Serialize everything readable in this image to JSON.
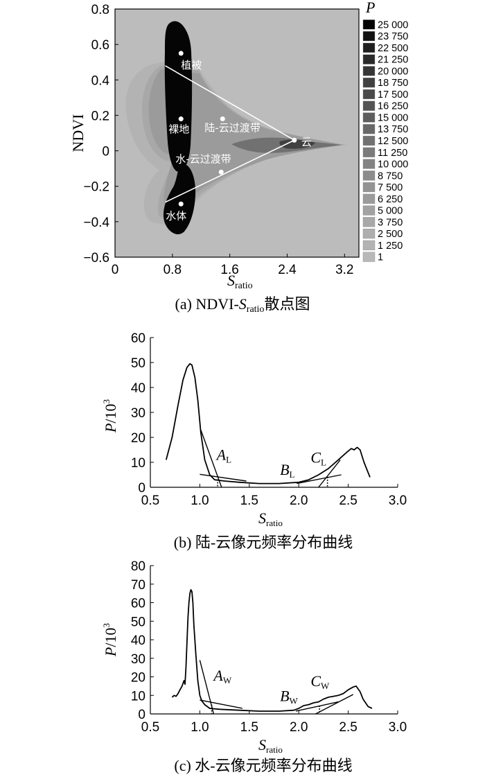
{
  "chart_data": [
    {
      "id": "a",
      "type": "heatmap",
      "caption": {
        "prefix": "(a) NDVI-",
        "var": "S",
        "sub": "ratio",
        "suffix": "散点图"
      },
      "xlabel": {
        "var": "S",
        "sub": "ratio"
      },
      "ylabel": "NDVI",
      "xlim": [
        0,
        3.4
      ],
      "ylim": [
        -0.6,
        0.8
      ],
      "xticks": [
        0,
        0.8,
        1.6,
        2.4,
        3.2
      ],
      "xtick_labels": [
        "0",
        "0.8",
        "1.6",
        "2.4",
        "3.2"
      ],
      "yticks": [
        0.8,
        0.6,
        0.4,
        0.2,
        0,
        -0.2,
        -0.4,
        -0.6
      ],
      "ytick_labels": [
        "0.8",
        "0.6",
        "0.4",
        "0.2",
        "0",
        "−0.2",
        "−0.4",
        "−0.6"
      ],
      "colorbar": {
        "title": "P",
        "levels": [
          "25 000",
          "23 750",
          "22 500",
          "21 250",
          "20 000",
          "18 750",
          "17 500",
          "16 250",
          "15 000",
          "13 750",
          "12 500",
          "11 250",
          "10 000",
          "8 750",
          "7 500",
          "6 250",
          "5 000",
          "3 750",
          "2 500",
          "1 250",
          "1"
        ],
        "colors": [
          "#050505",
          "#131313",
          "#1f1f1f",
          "#2a2a2a",
          "#363636",
          "#404040",
          "#4a4a4a",
          "#545454",
          "#5e5e5e",
          "#686868",
          "#717171",
          "#7a7a7a",
          "#838383",
          "#8c8c8c",
          "#949494",
          "#9b9b9b",
          "#a2a2a2",
          "#a8a8a8",
          "#aeaeae",
          "#b3b3b3",
          "#b8b8b8"
        ]
      },
      "background_color": "#bcbcbc",
      "points": [
        {
          "label": "植被",
          "x": 0.92,
          "y": 0.55
        },
        {
          "label": "裸地",
          "x": 0.92,
          "y": 0.18
        },
        {
          "label": "陆-云过渡带",
          "x": 1.5,
          "y": 0.18
        },
        {
          "label": "云",
          "x": 2.5,
          "y": 0.06
        },
        {
          "label": "水-云过渡带",
          "x": 1.48,
          "y": -0.12
        },
        {
          "label": "水体",
          "x": 0.92,
          "y": -0.3
        }
      ],
      "lines": [
        {
          "from": [
            0.7,
            0.48
          ],
          "to": [
            2.5,
            0.06
          ]
        },
        {
          "from": [
            0.7,
            -0.29
          ],
          "to": [
            2.5,
            0.06
          ]
        }
      ]
    },
    {
      "id": "b",
      "type": "line",
      "caption": "(b) 陆-云像元频率分布曲线",
      "xlabel": {
        "var": "S",
        "sub": "ratio"
      },
      "ylabel": {
        "var": "P",
        "rest": "/10",
        "sup": "3"
      },
      "xlim": [
        0.5,
        3.0
      ],
      "ylim": [
        0,
        60
      ],
      "xticks": [
        0.5,
        1.0,
        1.5,
        2.0,
        2.5,
        3.0
      ],
      "xtick_labels": [
        "0.5",
        "1.0",
        "1.5",
        "2.0",
        "2.5",
        "3.0"
      ],
      "yticks": [
        0,
        10,
        20,
        30,
        40,
        50,
        60
      ],
      "ytick_labels": [
        "0",
        "10",
        "20",
        "30",
        "40",
        "50",
        "60"
      ],
      "series": [
        {
          "x": [
            0.66,
            0.72,
            0.78,
            0.83,
            0.87,
            0.9,
            0.92,
            0.95,
            0.98,
            1.01,
            1.05,
            1.1,
            1.15,
            1.25,
            1.4,
            1.6,
            1.8,
            2.0,
            2.1,
            2.2,
            2.3,
            2.4,
            2.47,
            2.53,
            2.56,
            2.59,
            2.62,
            2.66,
            2.72
          ],
          "y": [
            11,
            20,
            33,
            43,
            48,
            49.5,
            49,
            44,
            35,
            22,
            11,
            5,
            3,
            2.5,
            2,
            1.5,
            1.5,
            2,
            3,
            5,
            7.5,
            11,
            13.5,
            15.5,
            15,
            16,
            15,
            10,
            4
          ]
        }
      ],
      "tangent_lines": [
        {
          "from": [
            1.01,
            23
          ],
          "to": [
            1.22,
            0
          ]
        },
        {
          "from": [
            1.0,
            5.2
          ],
          "to": [
            1.47,
            2.5
          ]
        },
        {
          "from": [
            1.98,
            1.5
          ],
          "to": [
            2.43,
            5
          ]
        },
        {
          "from": [
            2.2,
            0
          ],
          "to": [
            2.42,
            11
          ]
        }
      ],
      "dotted_lines": [
        {
          "from": [
            1.18,
            3.2
          ],
          "to": [
            1.18,
            0
          ]
        },
        {
          "from": [
            2.29,
            4.2
          ],
          "to": [
            2.29,
            0
          ]
        }
      ],
      "annotations": [
        {
          "var": "A",
          "sub": "L",
          "x": 1.17,
          "y": 11
        },
        {
          "var": "B",
          "sub": "L",
          "x": 1.81,
          "y": 5
        },
        {
          "var": "C",
          "sub": "L",
          "x": 2.12,
          "y": 9.8
        }
      ]
    },
    {
      "id": "c",
      "type": "line",
      "caption": "(c) 水-云像元频率分布曲线",
      "xlabel": {
        "var": "S",
        "sub": "ratio"
      },
      "ylabel": {
        "var": "P",
        "rest": "/10",
        "sup": "3"
      },
      "xlim": [
        0.5,
        3.0
      ],
      "ylim": [
        0,
        80
      ],
      "xticks": [
        0.5,
        1.0,
        1.5,
        2.0,
        2.5,
        3.0
      ],
      "xtick_labels": [
        "0.5",
        "1.0",
        "1.5",
        "2.0",
        "2.5",
        "3.0"
      ],
      "yticks": [
        0,
        10,
        20,
        30,
        40,
        50,
        60,
        70,
        80
      ],
      "ytick_labels": [
        "0",
        "10",
        "20",
        "30",
        "40",
        "50",
        "60",
        "70",
        "80"
      ],
      "series": [
        {
          "x": [
            0.72,
            0.74,
            0.76,
            0.78,
            0.8,
            0.82,
            0.84,
            0.85,
            0.86,
            0.87,
            0.88,
            0.89,
            0.9,
            0.91,
            0.92,
            0.93,
            0.94,
            0.96,
            0.98,
            1.0,
            1.02,
            1.05,
            1.1,
            1.2,
            1.4,
            1.6,
            1.8,
            1.95,
            2.0,
            2.05,
            2.1,
            2.15,
            2.2,
            2.25,
            2.3,
            2.35,
            2.4,
            2.45,
            2.5,
            2.55,
            2.58,
            2.62,
            2.65,
            2.7,
            2.74
          ],
          "y": [
            9,
            10,
            9.5,
            11,
            13,
            15,
            18,
            16,
            25,
            38,
            52,
            60,
            65,
            67,
            66,
            60,
            48,
            32,
            18,
            10,
            7,
            5,
            3,
            2.5,
            2,
            1.5,
            1.5,
            2,
            3,
            4.5,
            5,
            6,
            6.5,
            8,
            9,
            9.5,
            10,
            11,
            13,
            14.5,
            15,
            12,
            8,
            4,
            3
          ]
        }
      ],
      "tangent_lines": [
        {
          "from": [
            1.0,
            29
          ],
          "to": [
            1.14,
            0
          ]
        },
        {
          "from": [
            1.0,
            7.5
          ],
          "to": [
            1.43,
            3
          ]
        },
        {
          "from": [
            1.97,
            1.5
          ],
          "to": [
            2.4,
            6.5
          ]
        },
        {
          "from": [
            2.17,
            0
          ],
          "to": [
            2.55,
            10.5
          ]
        }
      ],
      "dotted_lines": [
        {
          "from": [
            1.12,
            5
          ],
          "to": [
            1.12,
            0
          ]
        },
        {
          "from": [
            2.21,
            4.5
          ],
          "to": [
            2.21,
            0
          ]
        }
      ],
      "annotations": [
        {
          "var": "A",
          "sub": "W",
          "x": 1.14,
          "y": 18
        },
        {
          "var": "B",
          "sub": "W",
          "x": 1.81,
          "y": 7
        },
        {
          "var": "C",
          "sub": "W",
          "x": 2.12,
          "y": 15
        }
      ]
    }
  ]
}
